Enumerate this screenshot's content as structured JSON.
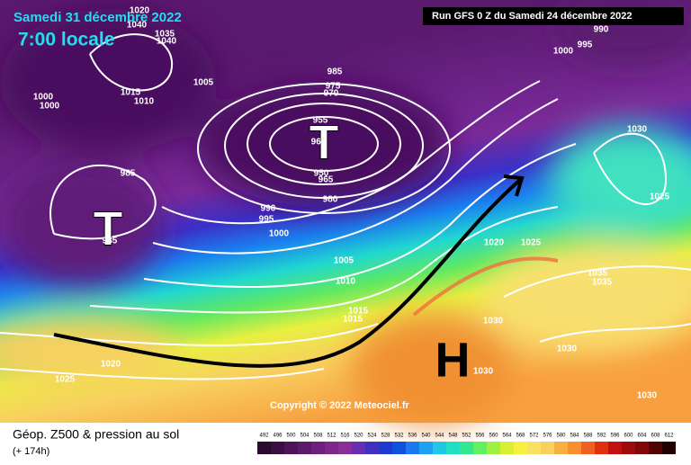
{
  "header": {
    "date": "Samedi 31 décembre 2022",
    "time": "7:00 locale",
    "run": "Run GFS 0 Z du Samedi 24 décembre 2022"
  },
  "map": {
    "lows": [
      "T",
      "T"
    ],
    "highs": [
      "H"
    ],
    "isobar_labels": [
      1020,
      1040,
      1035,
      1040,
      1000,
      1000,
      1015,
      1010,
      1005,
      985,
      985,
      985,
      975,
      970,
      955,
      960,
      950,
      965,
      980,
      990,
      995,
      1000,
      1005,
      1010,
      1015,
      1015,
      1020,
      1025,
      1020,
      1025,
      1030,
      1035,
      1035,
      1030,
      1030,
      1030,
      1025,
      990,
      995,
      1000,
      1030
    ],
    "copyright": "Copyright © 2022 Meteociel.fr"
  },
  "footer": {
    "title": "Géop. Z500 & pression au sol",
    "lead": "(+ 174h)",
    "scale": [
      492,
      496,
      500,
      504,
      508,
      512,
      516,
      520,
      524,
      528,
      532,
      536,
      540,
      544,
      548,
      552,
      556,
      560,
      564,
      568,
      572,
      576,
      580,
      584,
      588,
      592,
      596,
      600,
      604,
      608,
      612
    ],
    "colors": [
      "#2a0a2e",
      "#3c0f44",
      "#4e1458",
      "#5e1a6a",
      "#6e207c",
      "#7e268c",
      "#8a2c9a",
      "#6a2cb0",
      "#4030c0",
      "#2038d0",
      "#1050e0",
      "#1a78f0",
      "#20a0f0",
      "#20c8e8",
      "#20e0c0",
      "#30e890",
      "#60f060",
      "#a0f040",
      "#d8f030",
      "#f8f040",
      "#f8e060",
      "#f8d060",
      "#f8b040",
      "#f89030",
      "#f06020",
      "#e03010",
      "#c01010",
      "#a00a0a",
      "#800808",
      "#500404",
      "#200000"
    ]
  }
}
